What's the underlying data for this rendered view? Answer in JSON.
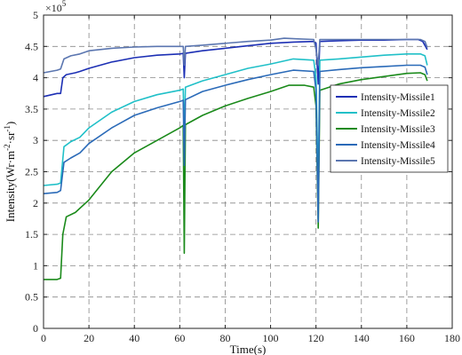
{
  "chart_data": {
    "type": "line",
    "title": "",
    "xlabel": "Time(s)",
    "ylabel_parts": [
      "Intensity(Wr·m",
      "-2",
      "·sr",
      "-1",
      ")"
    ],
    "y_multiplier": {
      "base": "×10",
      "exp": "5"
    },
    "xlim": [
      0,
      180
    ],
    "ylim": [
      0,
      5
    ],
    "xticks": [
      0,
      20,
      40,
      60,
      80,
      100,
      120,
      140,
      160,
      180
    ],
    "yticks": [
      0,
      0.5,
      1,
      1.5,
      2,
      2.5,
      3,
      3.5,
      4,
      4.5,
      5
    ],
    "grid": true,
    "legend_position": "right-top",
    "series": [
      {
        "name": "Intensity-Missile1",
        "color": "#1c2fb4",
        "points": [
          [
            0,
            3.7
          ],
          [
            6,
            3.75
          ],
          [
            7.5,
            3.75
          ],
          [
            8.5,
            4.0
          ],
          [
            10,
            4.05
          ],
          [
            14,
            4.08
          ],
          [
            16,
            4.1
          ],
          [
            20,
            4.15
          ],
          [
            30,
            4.25
          ],
          [
            40,
            4.32
          ],
          [
            50,
            4.36
          ],
          [
            60,
            4.38
          ],
          [
            61.5,
            4.39
          ],
          [
            62,
            4.0
          ],
          [
            62.5,
            4.39
          ],
          [
            70,
            4.43
          ],
          [
            80,
            4.47
          ],
          [
            90,
            4.51
          ],
          [
            100,
            4.55
          ],
          [
            110,
            4.57
          ],
          [
            119,
            4.58
          ],
          [
            120,
            4.55
          ],
          [
            121,
            3.9
          ],
          [
            121.7,
            4.58
          ],
          [
            130,
            4.59
          ],
          [
            140,
            4.6
          ],
          [
            150,
            4.6
          ],
          [
            160,
            4.61
          ],
          [
            165,
            4.61
          ],
          [
            167,
            4.58
          ],
          [
            169,
            4.45
          ]
        ]
      },
      {
        "name": "Intensity-Missile2",
        "color": "#20c0c8",
        "points": [
          [
            0,
            2.28
          ],
          [
            6,
            2.3
          ],
          [
            7.5,
            2.32
          ],
          [
            9,
            2.9
          ],
          [
            12,
            2.98
          ],
          [
            16,
            3.05
          ],
          [
            20,
            3.2
          ],
          [
            30,
            3.45
          ],
          [
            40,
            3.62
          ],
          [
            50,
            3.73
          ],
          [
            60,
            3.8
          ],
          [
            61.5,
            3.82
          ],
          [
            62,
            3.1
          ],
          [
            62.5,
            3.85
          ],
          [
            70,
            3.95
          ],
          [
            80,
            4.05
          ],
          [
            90,
            4.15
          ],
          [
            100,
            4.22
          ],
          [
            110,
            4.3
          ],
          [
            119,
            4.28
          ],
          [
            120,
            4.0
          ],
          [
            121,
            2.25
          ],
          [
            121.7,
            4.28
          ],
          [
            130,
            4.3
          ],
          [
            140,
            4.33
          ],
          [
            150,
            4.36
          ],
          [
            160,
            4.38
          ],
          [
            166,
            4.38
          ],
          [
            168,
            4.35
          ],
          [
            169,
            4.2
          ]
        ]
      },
      {
        "name": "Intensity-Missile3",
        "color": "#1a8a1a",
        "points": [
          [
            0,
            0.78
          ],
          [
            6,
            0.78
          ],
          [
            7.5,
            0.8
          ],
          [
            8.5,
            1.5
          ],
          [
            10,
            1.78
          ],
          [
            14,
            1.85
          ],
          [
            20,
            2.05
          ],
          [
            30,
            2.5
          ],
          [
            40,
            2.8
          ],
          [
            50,
            3.0
          ],
          [
            60,
            3.2
          ],
          [
            61.5,
            3.24
          ],
          [
            62,
            1.2
          ],
          [
            62.5,
            3.25
          ],
          [
            70,
            3.4
          ],
          [
            80,
            3.55
          ],
          [
            90,
            3.67
          ],
          [
            100,
            3.78
          ],
          [
            108,
            3.88
          ],
          [
            115,
            3.88
          ],
          [
            119,
            3.85
          ],
          [
            120,
            3.55
          ],
          [
            121,
            1.6
          ],
          [
            121.7,
            3.8
          ],
          [
            130,
            3.9
          ],
          [
            140,
            3.97
          ],
          [
            150,
            4.02
          ],
          [
            160,
            4.07
          ],
          [
            166,
            4.08
          ],
          [
            168,
            4.05
          ],
          [
            169,
            3.95
          ]
        ]
      },
      {
        "name": "Intensity-Missile4",
        "color": "#2a6ab8",
        "points": [
          [
            0,
            2.15
          ],
          [
            6,
            2.17
          ],
          [
            7.5,
            2.2
          ],
          [
            9,
            2.65
          ],
          [
            12,
            2.72
          ],
          [
            16,
            2.8
          ],
          [
            20,
            2.95
          ],
          [
            30,
            3.2
          ],
          [
            40,
            3.4
          ],
          [
            50,
            3.52
          ],
          [
            60,
            3.62
          ],
          [
            61.5,
            3.64
          ],
          [
            62,
            2.6
          ],
          [
            62.5,
            3.65
          ],
          [
            70,
            3.78
          ],
          [
            80,
            3.88
          ],
          [
            90,
            3.97
          ],
          [
            100,
            4.05
          ],
          [
            110,
            4.12
          ],
          [
            119,
            4.1
          ],
          [
            120,
            3.8
          ],
          [
            121,
            1.7
          ],
          [
            121.7,
            4.1
          ],
          [
            130,
            4.13
          ],
          [
            140,
            4.16
          ],
          [
            150,
            4.18
          ],
          [
            160,
            4.2
          ],
          [
            166,
            4.2
          ],
          [
            168,
            4.17
          ],
          [
            169,
            4.05
          ]
        ]
      },
      {
        "name": "Intensity-Missile5",
        "color": "#5b76b0",
        "points": [
          [
            0,
            4.08
          ],
          [
            6,
            4.12
          ],
          [
            7.5,
            4.14
          ],
          [
            9,
            4.3
          ],
          [
            12,
            4.35
          ],
          [
            16,
            4.38
          ],
          [
            20,
            4.43
          ],
          [
            30,
            4.47
          ],
          [
            40,
            4.49
          ],
          [
            50,
            4.5
          ],
          [
            60,
            4.5
          ],
          [
            61.5,
            4.5
          ],
          [
            62,
            4.2
          ],
          [
            62.5,
            4.5
          ],
          [
            70,
            4.52
          ],
          [
            80,
            4.55
          ],
          [
            90,
            4.58
          ],
          [
            100,
            4.6
          ],
          [
            106,
            4.63
          ],
          [
            112,
            4.62
          ],
          [
            119,
            4.61
          ],
          [
            120,
            4.45
          ],
          [
            121,
            4.2
          ],
          [
            121.7,
            4.61
          ],
          [
            130,
            4.61
          ],
          [
            140,
            4.61
          ],
          [
            150,
            4.61
          ],
          [
            160,
            4.61
          ],
          [
            166,
            4.61
          ],
          [
            168,
            4.58
          ],
          [
            169,
            4.48
          ]
        ]
      }
    ]
  }
}
